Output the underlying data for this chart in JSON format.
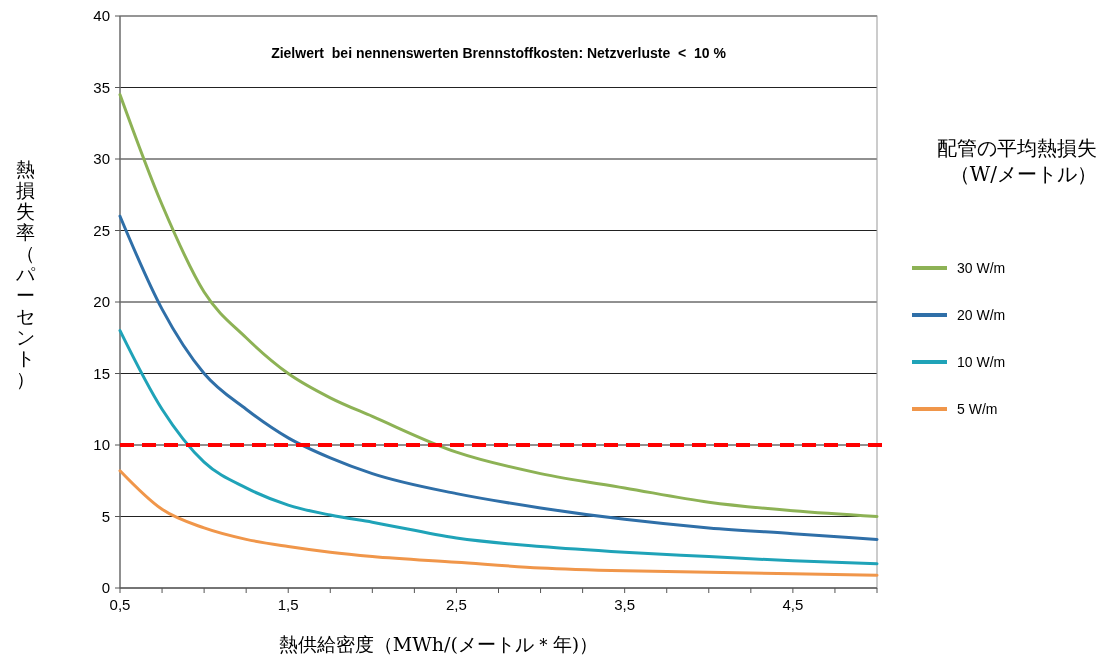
{
  "chart_data": {
    "type": "line",
    "xlabel": "熱供給密度（MWh/(メートル＊年)）",
    "ylabel": "熱損失率（パーセント）",
    "legend_title": "配管の平均熱損失（W/メートル）",
    "annotations": [
      "Zielwert  bei nennenswerten Brennstoffkosten: Netzverluste  <  10 %"
    ],
    "x": [
      0.5,
      0.75,
      1,
      1.25,
      1.5,
      1.75,
      2,
      2.5,
      3,
      3.5,
      4,
      4.5,
      5
    ],
    "series": [
      {
        "name": "30 W/m",
        "color": "#8db255",
        "values": [
          34.5,
          26.8,
          20.7,
          17.5,
          15,
          13.3,
          12,
          9.5,
          8,
          7,
          6,
          5.4,
          5
        ]
      },
      {
        "name": "20 W/m",
        "color": "#2f6fa8",
        "values": [
          26,
          19.5,
          15,
          12.5,
          10.5,
          9.1,
          8,
          6.6,
          5.6,
          4.8,
          4.2,
          3.8,
          3.4
        ]
      },
      {
        "name": "10 W/m",
        "color": "#1fa3b8",
        "values": [
          18,
          12.5,
          8.8,
          7,
          5.8,
          5.1,
          4.6,
          3.5,
          2.9,
          2.5,
          2.2,
          1.9,
          1.7
        ]
      },
      {
        "name": "5 W/m",
        "color": "#f0964a",
        "values": [
          8.2,
          5.5,
          4.2,
          3.4,
          2.9,
          2.5,
          2.2,
          1.8,
          1.4,
          1.2,
          1.1,
          1,
          0.9
        ]
      }
    ],
    "xlim": [
      0.5,
      5
    ],
    "xticks": [
      {
        "value": 0.5,
        "label": "0,5"
      },
      {
        "value": 0.75,
        "label": null
      },
      {
        "value": 1,
        "label": null
      },
      {
        "value": 1.25,
        "label": null
      },
      {
        "value": 1.5,
        "label": "1,5"
      },
      {
        "value": 1.75,
        "label": null
      },
      {
        "value": 2,
        "label": null
      },
      {
        "value": 2.25,
        "label": null
      },
      {
        "value": 2.5,
        "label": "2,5"
      },
      {
        "value": 2.75,
        "label": null
      },
      {
        "value": 3,
        "label": null
      },
      {
        "value": 3.25,
        "label": null
      },
      {
        "value": 3.5,
        "label": "3,5"
      },
      {
        "value": 3.75,
        "label": null
      },
      {
        "value": 4,
        "label": null
      },
      {
        "value": 4.25,
        "label": null
      },
      {
        "value": 4.5,
        "label": "4,5"
      },
      {
        "value": 4.75,
        "label": null
      },
      {
        "value": 5,
        "label": null
      }
    ],
    "ylim": [
      0,
      40
    ],
    "yticks": [
      0,
      5,
      10,
      15,
      20,
      25,
      30,
      35,
      40
    ],
    "ref_lines": [
      {
        "axis": "y",
        "value": 10,
        "color": "#ff0000",
        "line_style": "dashed"
      }
    ],
    "grid": "y",
    "legend": "right",
    "line_style": "solid"
  }
}
